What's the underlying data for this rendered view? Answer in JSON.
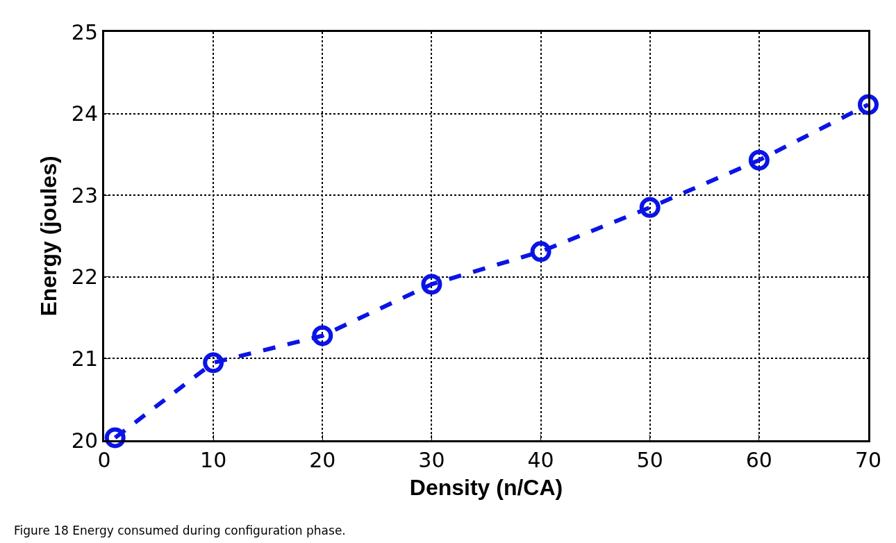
{
  "chart_data": {
    "type": "line",
    "xlabel": "Density (n/CA)",
    "ylabel": "Energy (joules)",
    "x": [
      1,
      10,
      20,
      30,
      40,
      50,
      60,
      70
    ],
    "series": [
      {
        "color": "#0a14e6",
        "values": [
          20.03,
          20.95,
          21.28,
          21.91,
          22.31,
          22.85,
          23.43,
          24.11
        ]
      }
    ],
    "xlim": [
      0,
      70
    ],
    "xticks": [
      0,
      10,
      20,
      30,
      40,
      50,
      60,
      70
    ],
    "ylim": [
      20,
      25
    ],
    "yticks": [
      20,
      21,
      22,
      23,
      24,
      25
    ],
    "grid": true,
    "marker": "circle",
    "line_style": "dashed",
    "annotations": [
      "Figure 18 Energy consumed during configuration phase."
    ]
  }
}
